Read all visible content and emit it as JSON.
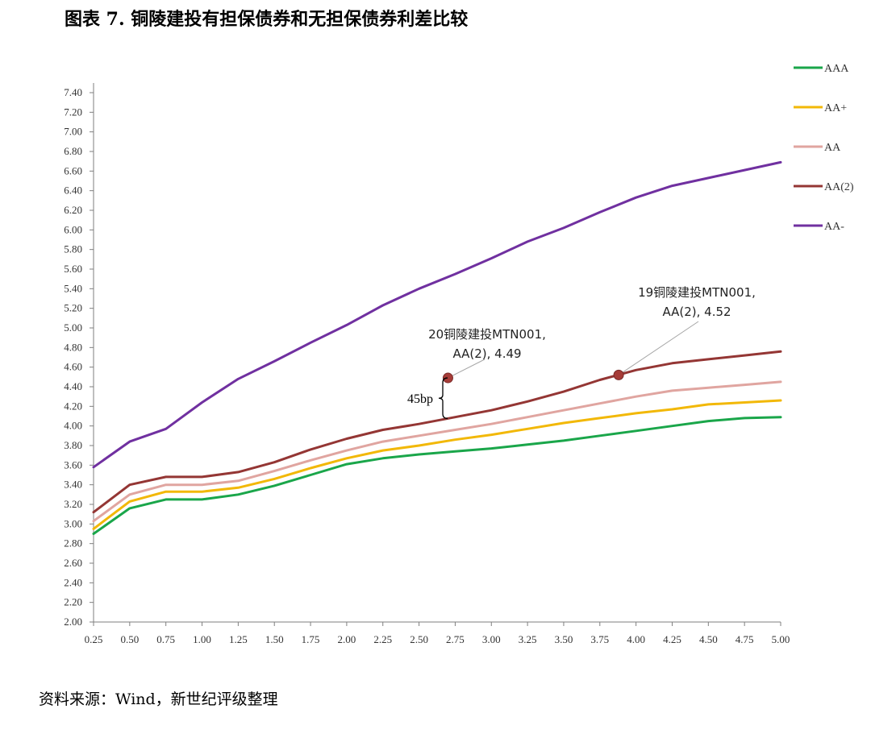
{
  "title": "图表 7. 铜陵建投有担保债券和无担保债券利差比较",
  "source": "资料来源：Wind，新世纪评级整理",
  "chart_data": {
    "type": "line",
    "x": [
      0.25,
      0.5,
      0.75,
      1.0,
      1.25,
      1.5,
      1.75,
      2.0,
      2.25,
      2.5,
      2.75,
      3.0,
      3.25,
      3.5,
      3.75,
      4.0,
      4.25,
      4.5,
      4.75,
      5.0
    ],
    "x_tick_labels": [
      "0.25",
      "0.50",
      "0.75",
      "1.00",
      "1.25",
      "1.50",
      "1.75",
      "2.00",
      "2.25",
      "2.50",
      "2.75",
      "3.00",
      "3.25",
      "3.50",
      "3.75",
      "4.00",
      "4.25",
      "4.50",
      "4.75",
      "5.00"
    ],
    "ylim": [
      2.0,
      7.4
    ],
    "y_ticks": [
      2.0,
      2.2,
      2.4,
      2.6,
      2.8,
      3.0,
      3.2,
      3.4,
      3.6,
      3.8,
      4.0,
      4.2,
      4.4,
      4.6,
      4.8,
      5.0,
      5.2,
      5.4,
      5.6,
      5.8,
      6.0,
      6.2,
      6.4,
      6.6,
      6.8,
      7.0,
      7.2,
      7.4
    ],
    "y_tick_labels": [
      "2.00",
      "2.20",
      "2.40",
      "2.60",
      "2.80",
      "3.00",
      "3.20",
      "3.40",
      "3.60",
      "3.80",
      "4.00",
      "4.20",
      "4.40",
      "4.60",
      "4.80",
      "5.00",
      "5.20",
      "5.40",
      "5.60",
      "5.80",
      "6.00",
      "6.20",
      "6.40",
      "6.60",
      "6.80",
      "7.00",
      "7.20",
      "7.40"
    ],
    "legend_position": "right",
    "series": [
      {
        "name": "AAA",
        "color": "#1aa64a",
        "values": [
          2.9,
          3.16,
          3.25,
          3.25,
          3.3,
          3.39,
          3.5,
          3.61,
          3.67,
          3.71,
          3.74,
          3.77,
          3.81,
          3.85,
          3.9,
          3.95,
          4.0,
          4.05,
          4.08,
          4.09
        ]
      },
      {
        "name": "AA+",
        "color": "#f2b807",
        "values": [
          2.95,
          3.23,
          3.33,
          3.33,
          3.37,
          3.46,
          3.57,
          3.67,
          3.75,
          3.8,
          3.86,
          3.91,
          3.97,
          4.03,
          4.08,
          4.13,
          4.17,
          4.22,
          4.24,
          4.26
        ]
      },
      {
        "name": "AA",
        "color": "#e0a5a0",
        "values": [
          3.03,
          3.3,
          3.4,
          3.4,
          3.44,
          3.54,
          3.65,
          3.75,
          3.84,
          3.9,
          3.96,
          4.02,
          4.09,
          4.16,
          4.23,
          4.3,
          4.36,
          4.39,
          4.42,
          4.45
        ]
      },
      {
        "name": "AA(2)",
        "color": "#943634",
        "values": [
          3.12,
          3.4,
          3.48,
          3.48,
          3.53,
          3.63,
          3.76,
          3.87,
          3.96,
          4.02,
          4.09,
          4.16,
          4.25,
          4.35,
          4.47,
          4.57,
          4.64,
          4.68,
          4.72,
          4.76
        ]
      },
      {
        "name": "AA-",
        "color": "#7030a0",
        "values": [
          3.58,
          3.84,
          3.97,
          4.24,
          4.48,
          4.66,
          4.85,
          5.03,
          5.23,
          5.4,
          5.55,
          5.71,
          5.88,
          6.02,
          6.18,
          6.33,
          6.45,
          6.53,
          6.61,
          6.69
        ]
      }
    ],
    "markers": [
      {
        "x": 2.7,
        "y": 4.49,
        "label_line1": "20铜陵建投MTN001,",
        "label_line2": "AA(2), 4.49",
        "color": "#a63c38"
      },
      {
        "x": 3.88,
        "y": 4.52,
        "label_line1": "19铜陵建投MTN001,",
        "label_line2": "AA(2), 4.52",
        "color": "#a63c38"
      }
    ],
    "spread_label": "45bp"
  }
}
